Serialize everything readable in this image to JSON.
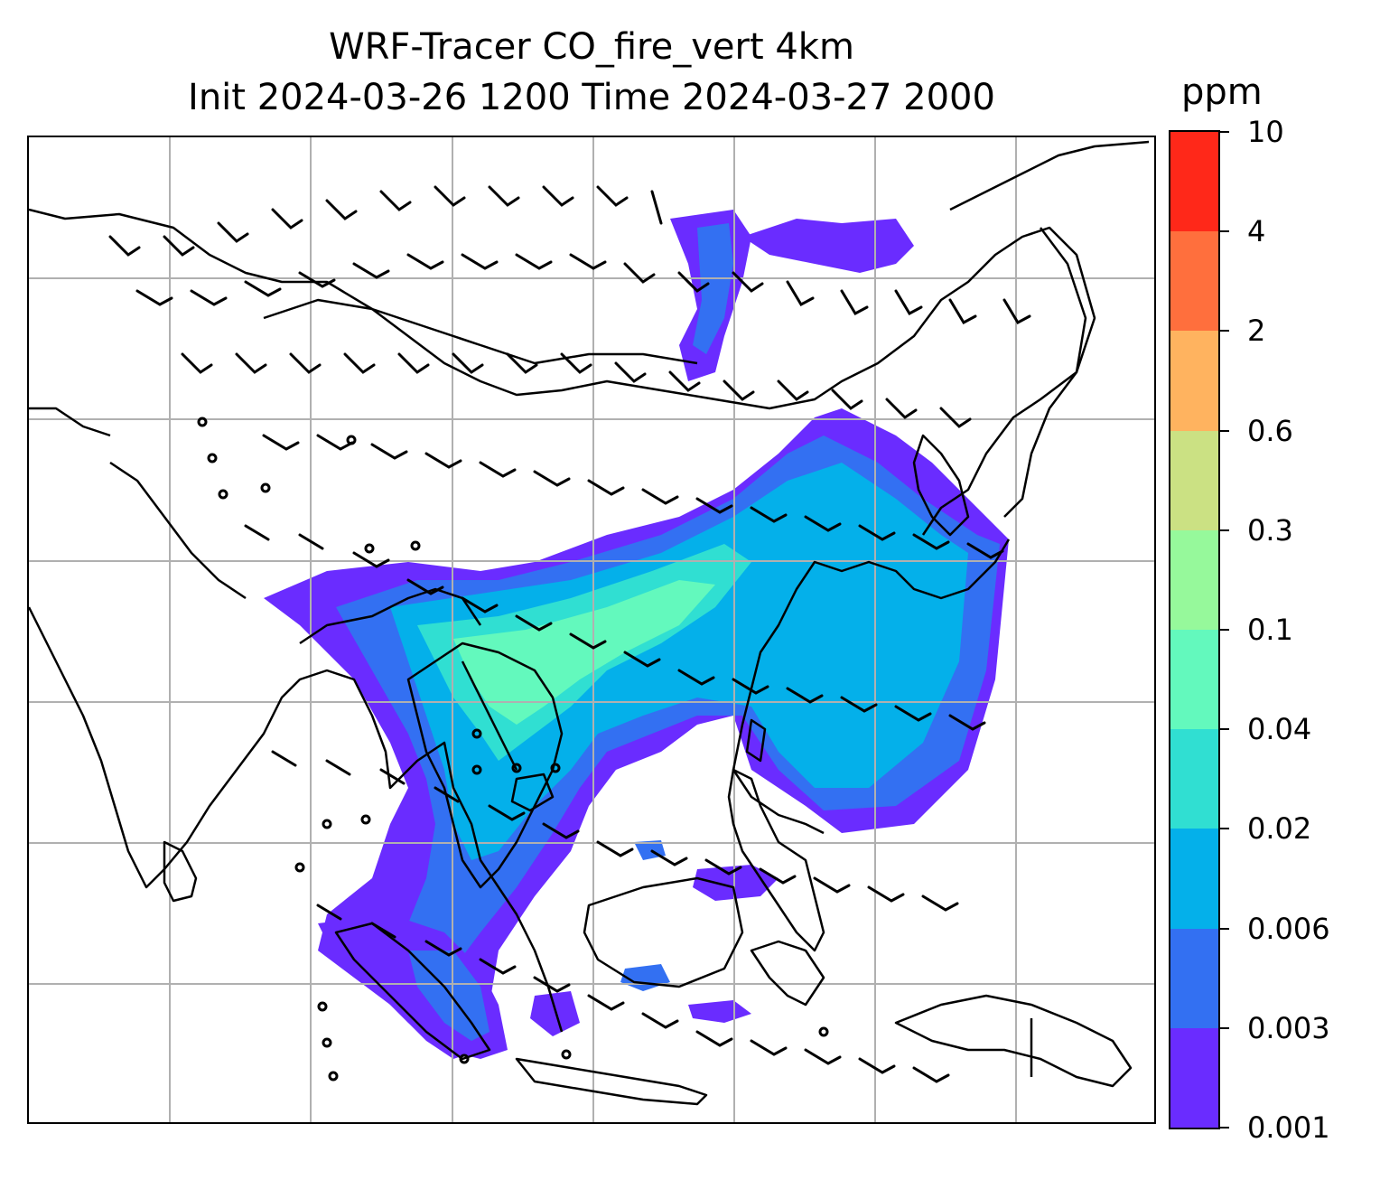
{
  "title": {
    "line1": "WRF-Tracer CO_fire_vert 4km",
    "line2": "Init 2024-03-26 1200 Time 2024-03-27 2000"
  },
  "colorbar": {
    "unit": "ppm",
    "levels": [
      "0.001",
      "0.003",
      "0.006",
      "0.02",
      "0.04",
      "0.1",
      "0.3",
      "0.6",
      "2",
      "4",
      "10"
    ],
    "colors": [
      "#6a2cff",
      "#3370f2",
      "#04b0ea",
      "#30dfd2",
      "#63f9bd",
      "#96f99b",
      "#cbe183",
      "#ffb35f",
      "#ff6f3d",
      "#ff2819"
    ]
  },
  "map": {
    "gridlines": true,
    "coastline_color": "#000000",
    "gridline_color": "#b0b0b0",
    "wind_barbs": true,
    "plume_colors": {
      "low": "#6a2cff",
      "mid_low": "#3370f2",
      "mid": "#04b0ea",
      "mid_high": "#30dfd2",
      "high": "#63f9bd",
      "peak": "#96f99b"
    }
  }
}
